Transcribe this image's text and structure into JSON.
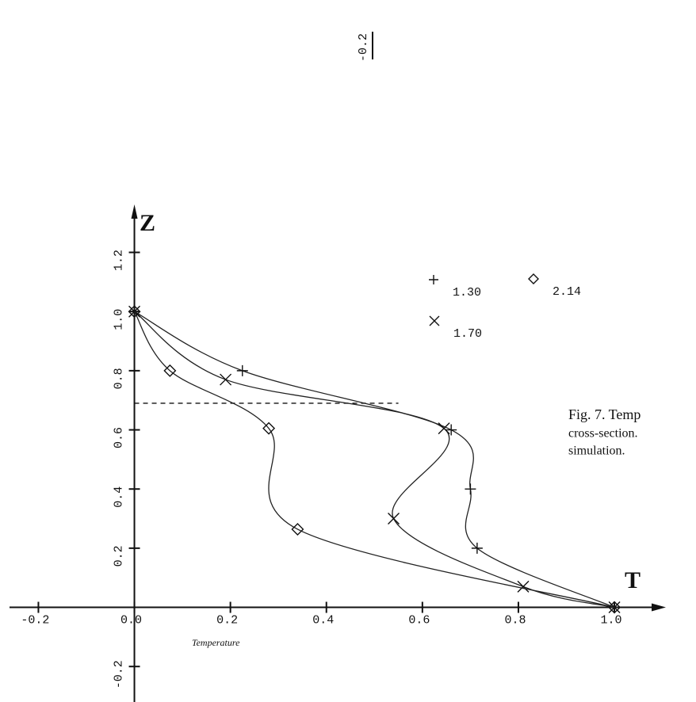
{
  "chart_data": {
    "type": "line",
    "x_axis_label": "T",
    "x_axis_caption": "Temperature",
    "y_axis_label": "Z",
    "xlim": [
      -0.28,
      1.17
    ],
    "ylim": [
      -0.32,
      1.33
    ],
    "xticks": [
      {
        "value": -0.2,
        "label": "-0.2"
      },
      {
        "value": 0,
        "label": "0.0"
      },
      0.2,
      0.4,
      0.6,
      0.8,
      {
        "value": 1,
        "label": "1.0"
      }
    ],
    "yticks": [
      -0.2,
      0.2,
      0.4,
      0.6,
      0.8,
      {
        "value": 1,
        "label": "1.0"
      },
      1.2
    ],
    "series": [
      {
        "name": "1.30",
        "marker": "plus",
        "color": "#222",
        "x": [
          0,
          0.225,
          0.66,
          0.7,
          0.714,
          1
        ],
        "values": [
          1,
          0.8,
          0.6,
          0.4,
          0.2,
          0
        ]
      },
      {
        "name": "1.70",
        "marker": "cross",
        "color": "#222",
        "x": [
          0,
          0.19,
          0.645,
          0.54,
          0.81,
          1
        ],
        "values": [
          1,
          0.77,
          0.605,
          0.3,
          0.07,
          0
        ]
      },
      {
        "name": "2.14",
        "marker": "diamond",
        "color": "#222",
        "x": [
          0,
          0.074,
          0.28,
          0.34,
          1
        ],
        "values": [
          1,
          0.8,
          0.605,
          0.264,
          0
        ]
      }
    ],
    "reference_line": {
      "y": 0.69,
      "x": [
        0,
        0.55
      ]
    },
    "fragment_tick_label": "-0.2",
    "caption_lines": [
      "Fig. 7. Temp",
      "cross-section.",
      "simulation."
    ]
  }
}
